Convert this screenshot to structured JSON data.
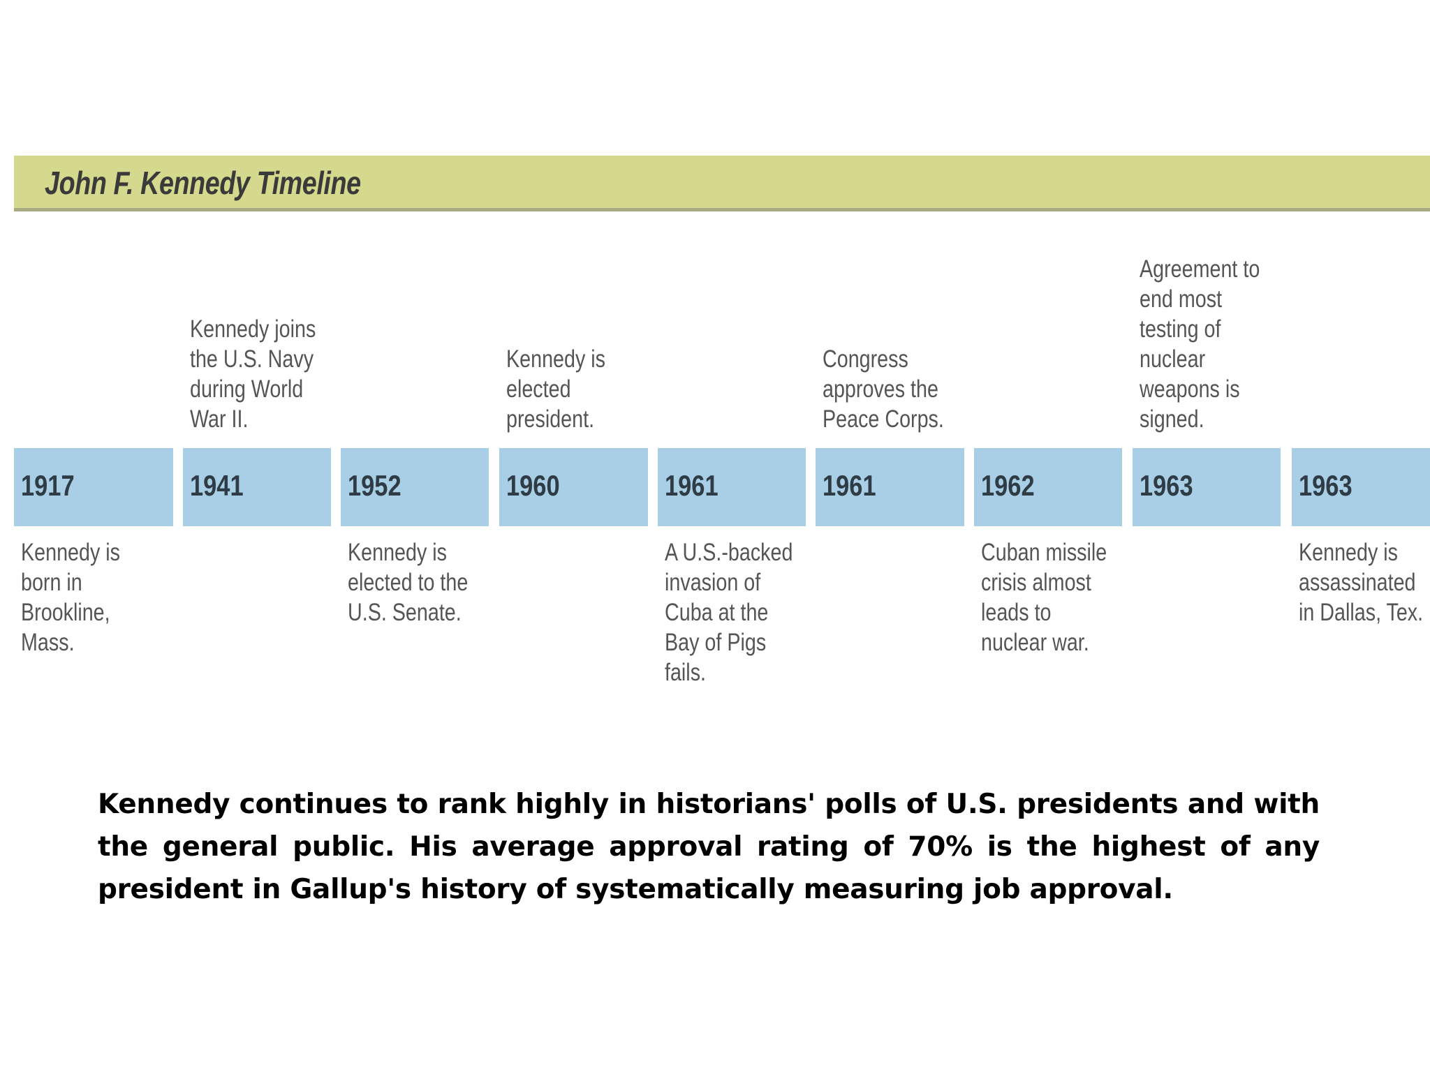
{
  "title": "John F. Kennedy Timeline",
  "timeline": [
    {
      "year": "1917",
      "event": "Kennedy is\nborn in\nBrookline,\nMass.",
      "position": "below"
    },
    {
      "year": "1941",
      "event": "Kennedy joins\nthe U.S. Navy\nduring World\nWar II.",
      "position": "above"
    },
    {
      "year": "1952",
      "event": "Kennedy is\nelected to the\nU.S. Senate.",
      "position": "below"
    },
    {
      "year": "1960",
      "event": "Kennedy is\nelected\npresident.",
      "position": "above"
    },
    {
      "year": "1961",
      "event": "A U.S.-backed\ninvasion of\nCuba at the\nBay of Pigs\nfails.",
      "position": "below"
    },
    {
      "year": "1961",
      "event": "Congress\napproves the\nPeace Corps.",
      "position": "above"
    },
    {
      "year": "1962",
      "event": "Cuban missile\ncrisis almost\nleads to\nnuclear war.",
      "position": "below"
    },
    {
      "year": "1963",
      "event": "Agreement to\nend most\ntesting of\nnuclear\nweapons is\nsigned.",
      "position": "above"
    },
    {
      "year": "1963",
      "event": "Kennedy is\nassassinated\nin Dallas, Tex.",
      "position": "below"
    }
  ],
  "caption": "Kennedy continues to rank highly in historians' polls of U.S. presidents and with the general public. His average approval rating of 70% is the highest of any president in Gallup's history of systematically measuring job approval."
}
